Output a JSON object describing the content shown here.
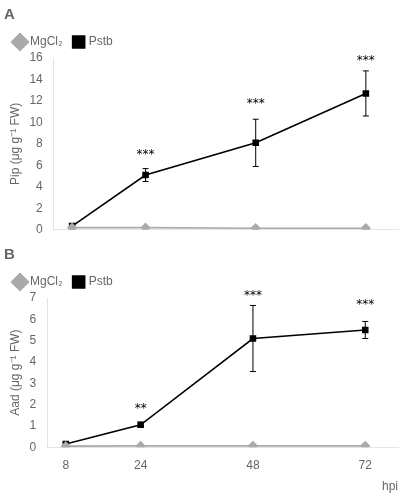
{
  "chart_data": [
    {
      "type": "line",
      "title": "A",
      "x": [
        8,
        24,
        48,
        72
      ],
      "series": [
        {
          "name": "MgCl₂",
          "color": "#aaaaaa",
          "marker": "diamond",
          "values": [
            0.2,
            0.2,
            0.15,
            0.15
          ],
          "errors": [
            0.05,
            0.05,
            0.04,
            0.04
          ]
        },
        {
          "name": "Pstb",
          "color": "#000000",
          "marker": "square",
          "values": [
            0.35,
            5.1,
            8.1,
            12.7
          ],
          "errors": [
            0.1,
            0.6,
            2.2,
            2.1
          ]
        }
      ],
      "ylabel": "Pip (μg g⁻¹ FW)",
      "xlim": [
        4,
        79
      ],
      "xticks": [
        8,
        24,
        48,
        72
      ],
      "ylim": [
        0,
        16
      ],
      "yticks": [
        0,
        2,
        4,
        6,
        8,
        10,
        12,
        14,
        16
      ],
      "annotations": [
        {
          "x": 24,
          "y": 6.4,
          "text": "***"
        },
        {
          "x": 48,
          "y": 11.2,
          "text": "***"
        },
        {
          "x": 72,
          "y": 15.2,
          "text": "***"
        }
      ],
      "tick_labels": "y",
      "grid": false,
      "legend": "upper left"
    },
    {
      "type": "line",
      "title": "B",
      "x": [
        8,
        24,
        48,
        72
      ],
      "series": [
        {
          "name": "MgCl₂",
          "color": "#aaaaaa",
          "marker": "diamond",
          "values": [
            0.05,
            0.06,
            0.06,
            0.06
          ],
          "errors": [
            0.02,
            0.02,
            0.02,
            0.02
          ]
        },
        {
          "name": "Pstb",
          "color": "#000000",
          "marker": "square",
          "values": [
            0.15,
            1.05,
            5.1,
            5.5
          ],
          "errors": [
            0.05,
            0.12,
            1.55,
            0.4
          ]
        }
      ],
      "xlabel": "hpi",
      "ylabel": "Aad (μg g⁻¹ FW)",
      "xlim": [
        4,
        79
      ],
      "xticks": [
        8,
        24,
        48,
        72
      ],
      "ylim": [
        0,
        7
      ],
      "yticks": [
        0,
        1,
        2,
        3,
        4,
        5,
        6,
        7
      ],
      "annotations": [
        {
          "x": 24,
          "y": 1.5,
          "text": "**"
        },
        {
          "x": 48,
          "y": 6.8,
          "text": "***"
        },
        {
          "x": 72,
          "y": 6.4,
          "text": "***"
        }
      ],
      "grid": false,
      "legend": "upper left"
    }
  ]
}
